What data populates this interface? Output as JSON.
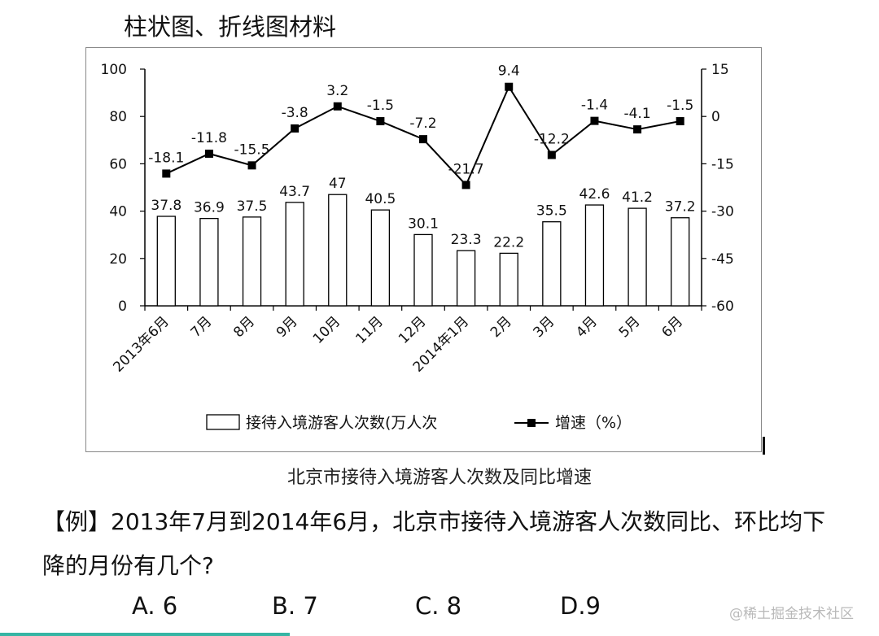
{
  "heading": "柱状图、折线图材料",
  "caption": "北京市接待入境游客人次数及同比增速",
  "question": "【例】2013年7月到2014年6月，北京市接待入境游客人次数同比、环比均下降的月份有几个?",
  "options": [
    "A. 6",
    "B. 7",
    "C. 8",
    "D.9"
  ],
  "watermark": "@稀土掘金技术社区",
  "colors": {
    "bar_fill": "#ffffff",
    "bar_stroke": "#000000",
    "line": "#000000",
    "accent_line": "#35b5a4"
  },
  "chart_data": {
    "type": "bar",
    "categories": [
      "2013年6月",
      "7月",
      "8月",
      "9月",
      "10月",
      "11月",
      "12月",
      "2014年1月",
      "2月",
      "3月",
      "4月",
      "5月",
      "6月"
    ],
    "series": [
      {
        "name": "接待入境游客人次数(万人次",
        "type": "bar",
        "axis": "left",
        "values": [
          37.8,
          36.9,
          37.5,
          43.7,
          47,
          40.5,
          30.1,
          23.3,
          22.2,
          35.5,
          42.6,
          41.2,
          37.2
        ]
      },
      {
        "name": "增速（%）",
        "type": "line",
        "axis": "right",
        "values": [
          -18.1,
          -11.8,
          -15.5,
          -3.8,
          3.2,
          -1.5,
          -7.2,
          -21.7,
          9.4,
          -12.2,
          -1.4,
          -4.1,
          -1.5
        ]
      }
    ],
    "left_axis": {
      "ylim": [
        0,
        100
      ],
      "ticks": [
        0,
        20,
        40,
        60,
        80,
        100
      ]
    },
    "right_axis": {
      "ylim": [
        -60,
        15
      ],
      "ticks": [
        -60,
        -45,
        -30,
        -15,
        0,
        15
      ]
    },
    "legend": {
      "placement": "bottom",
      "entries": [
        "接待入境游客人次数(万人次",
        "增速（%）"
      ]
    },
    "grid": false
  }
}
